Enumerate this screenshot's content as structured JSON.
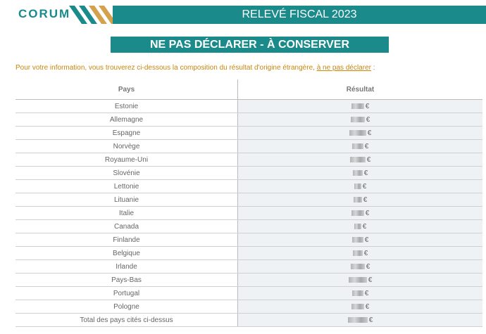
{
  "header": {
    "logo": "CORUM",
    "title": "RELEVÉ FISCAL 2023"
  },
  "banner": "NE PAS DÉCLARER - À CONSERVER",
  "intro": {
    "text": "Pour votre information, vous trouverez ci-dessous la composition du résultat d'origine étrangère, ",
    "underlined": "à ne pas déclarer",
    "end": " :"
  },
  "table": {
    "columns": [
      "Pays",
      "Résultat"
    ],
    "rows": [
      [
        "Estonie",
        "€"
      ],
      [
        "Allemagne",
        "€"
      ],
      [
        "Espagne",
        "€"
      ],
      [
        "Norvège",
        "€"
      ],
      [
        "Royaume-Uni",
        "€"
      ],
      [
        "Slovénie",
        "€"
      ],
      [
        "Lettonie",
        "€"
      ],
      [
        "Lituanie",
        "€"
      ],
      [
        "Italie",
        "€"
      ],
      [
        "Canada",
        "€"
      ],
      [
        "Finlande",
        "€"
      ],
      [
        "Belgique",
        "€"
      ],
      [
        "Irlande",
        "€"
      ],
      [
        "Pays-Bas",
        "€"
      ],
      [
        "Portugal",
        "€"
      ],
      [
        "Pologne",
        "€"
      ],
      [
        "Total des pays cités ci-dessus",
        "€"
      ]
    ]
  }
}
